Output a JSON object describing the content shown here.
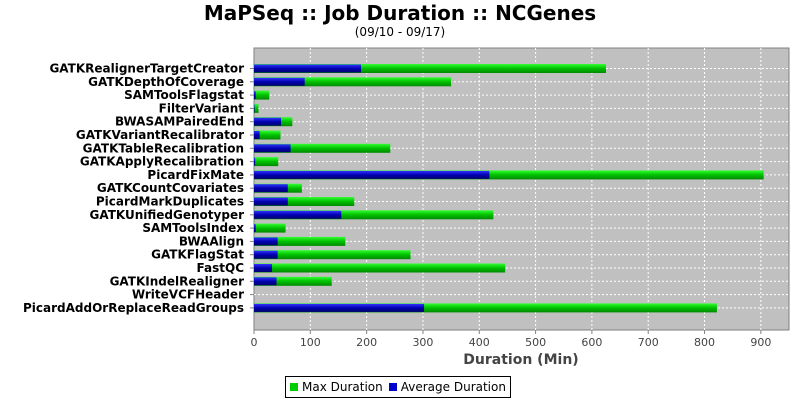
{
  "chart_data": {
    "type": "bar",
    "orientation": "horizontal",
    "title": "MaPSeq :: Job Duration :: NCGenes",
    "subtitle": "(09/10 - 09/17)",
    "xlabel": "Duration (Min)",
    "ylabel": "",
    "xlim": [
      0,
      950
    ],
    "xticks": [
      0,
      100,
      200,
      300,
      400,
      500,
      600,
      700,
      800,
      900
    ],
    "grid": true,
    "legend_position": "bottom",
    "categories": [
      "GATKRealignerTargetCreator",
      "GATKDepthOfCoverage",
      "SAMToolsFlagstat",
      "FilterVariant",
      "BWASAMPairedEnd",
      "GATKVariantRecalibrator",
      "GATKTableRecalibration",
      "GATKApplyRecalibration",
      "PicardFixMate",
      "GATKCountCovariates",
      "PicardMarkDuplicates",
      "GATKUnifiedGenotyper",
      "SAMToolsIndex",
      "BWAAlign",
      "GATKFlagStat",
      "FastQC",
      "GATKIndelRealigner",
      "WriteVCFHeader",
      "PicardAddOrReplaceReadGroups"
    ],
    "series": [
      {
        "name": "Max Duration",
        "color": "#00cc00",
        "values": [
          625,
          350,
          27,
          8,
          68,
          47,
          242,
          43,
          905,
          85,
          178,
          425,
          56,
          162,
          278,
          446,
          138,
          0,
          822
        ]
      },
      {
        "name": "Average Duration",
        "color": "#0000cc",
        "values": [
          190,
          90,
          3,
          1,
          48,
          10,
          65,
          2,
          418,
          60,
          60,
          155,
          3,
          42,
          42,
          32,
          40,
          0,
          302
        ]
      }
    ]
  }
}
